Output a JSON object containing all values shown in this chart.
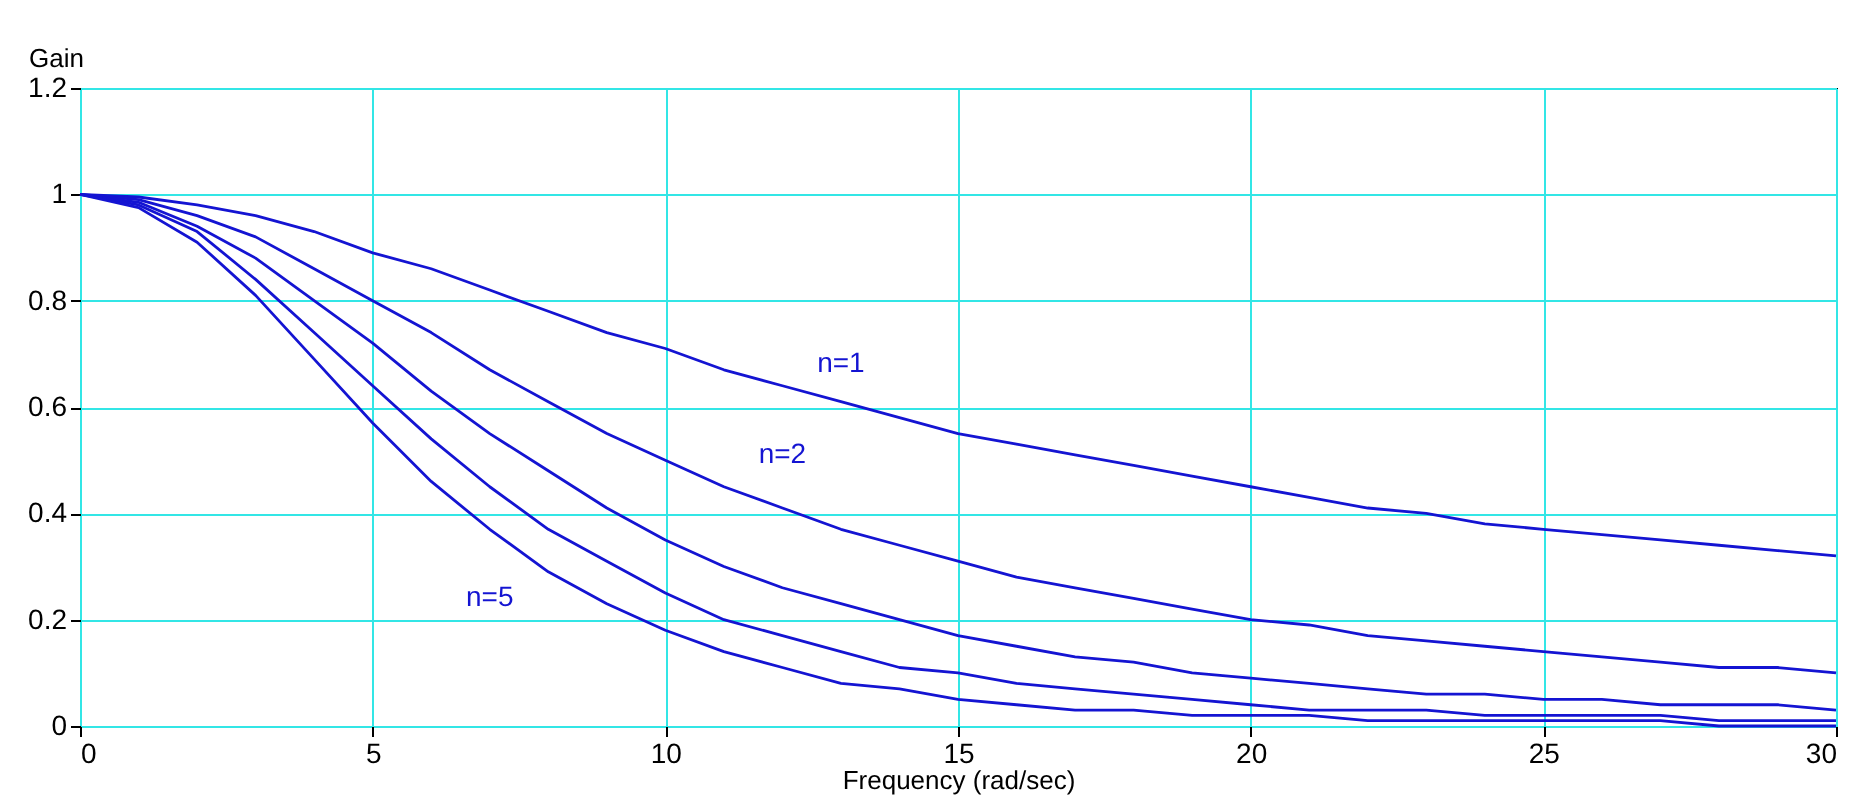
{
  "chart_data": {
    "type": "line",
    "xlabel": "Frequency (rad/sec)",
    "ylabel": "Gain",
    "x": [
      0,
      1,
      2,
      3,
      4,
      5,
      6,
      7,
      8,
      9,
      10,
      11,
      12,
      13,
      14,
      15,
      16,
      17,
      18,
      19,
      20,
      21,
      22,
      23,
      24,
      25,
      26,
      27,
      28,
      29,
      30
    ],
    "series": [
      {
        "name": "n=1",
        "color": "#1414d2",
        "values": [
          1,
          0.995,
          0.98,
          0.96,
          0.93,
          0.89,
          0.86,
          0.82,
          0.78,
          0.74,
          0.71,
          0.67,
          0.64,
          0.61,
          0.58,
          0.55,
          0.53,
          0.51,
          0.49,
          0.47,
          0.45,
          0.43,
          0.41,
          0.4,
          0.38,
          0.37,
          0.36,
          0.35,
          0.34,
          0.33,
          0.32
        ]
      },
      {
        "name": "n=2",
        "color": "#1414d2",
        "values": [
          1,
          0.99,
          0.96,
          0.92,
          0.86,
          0.8,
          0.74,
          0.67,
          0.61,
          0.55,
          0.5,
          0.45,
          0.41,
          0.37,
          0.34,
          0.31,
          0.28,
          0.26,
          0.24,
          0.22,
          0.2,
          0.19,
          0.17,
          0.16,
          0.15,
          0.14,
          0.13,
          0.12,
          0.11,
          0.11,
          0.1
        ]
      },
      {
        "color": "#1414d2",
        "values": [
          1,
          0.985,
          0.94,
          0.88,
          0.8,
          0.72,
          0.63,
          0.55,
          0.48,
          0.41,
          0.35,
          0.3,
          0.26,
          0.23,
          0.2,
          0.17,
          0.15,
          0.13,
          0.12,
          0.1,
          0.09,
          0.08,
          0.07,
          0.06,
          0.06,
          0.05,
          0.05,
          0.04,
          0.04,
          0.04,
          0.03
        ]
      },
      {
        "color": "#1414d2",
        "values": [
          1,
          0.98,
          0.93,
          0.84,
          0.74,
          0.64,
          0.54,
          0.45,
          0.37,
          0.31,
          0.25,
          0.2,
          0.17,
          0.14,
          0.11,
          0.1,
          0.08,
          0.07,
          0.06,
          0.05,
          0.04,
          0.03,
          0.03,
          0.03,
          0.02,
          0.02,
          0.02,
          0.02,
          0.01,
          0.01,
          0.01
        ]
      },
      {
        "name": "n=5",
        "color": "#1414d2",
        "values": [
          1,
          0.975,
          0.91,
          0.81,
          0.69,
          0.57,
          0.46,
          0.37,
          0.29,
          0.23,
          0.18,
          0.14,
          0.11,
          0.08,
          0.07,
          0.05,
          0.04,
          0.03,
          0.03,
          0.02,
          0.02,
          0.02,
          0.01,
          0.01,
          0.01,
          0.01,
          0.01,
          0.01,
          0,
          0,
          0
        ]
      }
    ],
    "xlim": [
      0,
      30
    ],
    "xticks": [
      0,
      5,
      10,
      15,
      20,
      25,
      30
    ],
    "ylim": [
      0,
      1.2
    ],
    "yticks": [
      {
        "value": 0,
        "label": "0"
      },
      0.2,
      0.4,
      0.6,
      0.8,
      {
        "value": 1,
        "label": "1"
      },
      1.2
    ],
    "grid": true,
    "legend": false,
    "marker": "none",
    "line_style": "solid"
  }
}
